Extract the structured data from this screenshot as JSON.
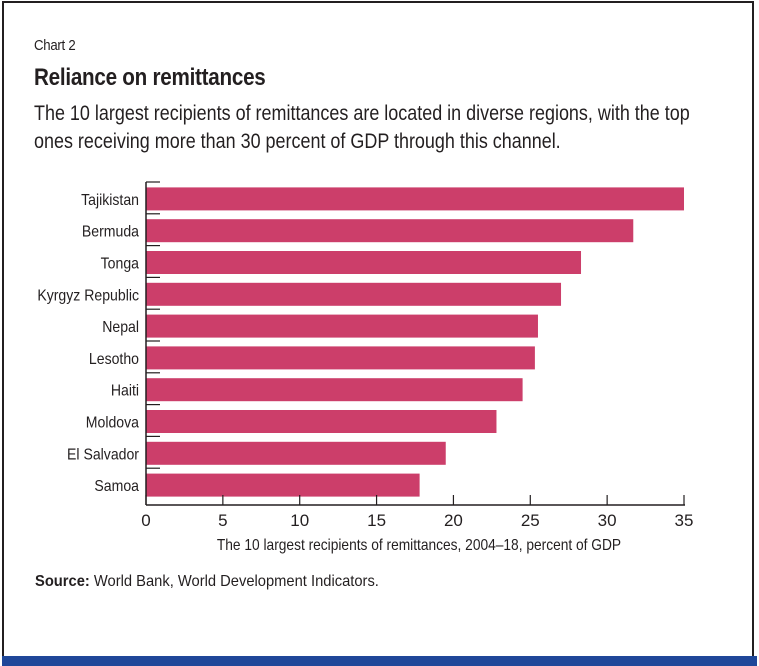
{
  "header": {
    "chart_label": "Chart 2",
    "title": "Reliance on remittances",
    "subtitle": "The 10 largest recipients of remittances are located in diverse regions, with the top ones receiving more than 30 percent of GDP through this channel."
  },
  "footer": {
    "source_label": "Source:",
    "source_text": "World Bank, World Development Indicators."
  },
  "colors": {
    "bar": "#cc3e6a",
    "band": "#1f4799",
    "text": "#231f20"
  },
  "chart_data": {
    "type": "bar",
    "orientation": "horizontal",
    "title": "Reliance on remittances",
    "xlabel": "The 10 largest recipients of remittances, 2004–18, percent of GDP",
    "ylabel": "",
    "xlim": [
      0,
      35
    ],
    "xticks": [
      0,
      5,
      10,
      15,
      20,
      25,
      30,
      35
    ],
    "grid": false,
    "categories": [
      "Tajikistan",
      "Bermuda",
      "Tonga",
      "Kyrgyz Republic",
      "Nepal",
      "Lesotho",
      "Haiti",
      "Moldova",
      "El Salvador",
      "Samoa"
    ],
    "values": [
      35.0,
      31.7,
      28.3,
      27.0,
      25.5,
      25.3,
      24.5,
      22.8,
      19.5,
      17.8
    ]
  }
}
